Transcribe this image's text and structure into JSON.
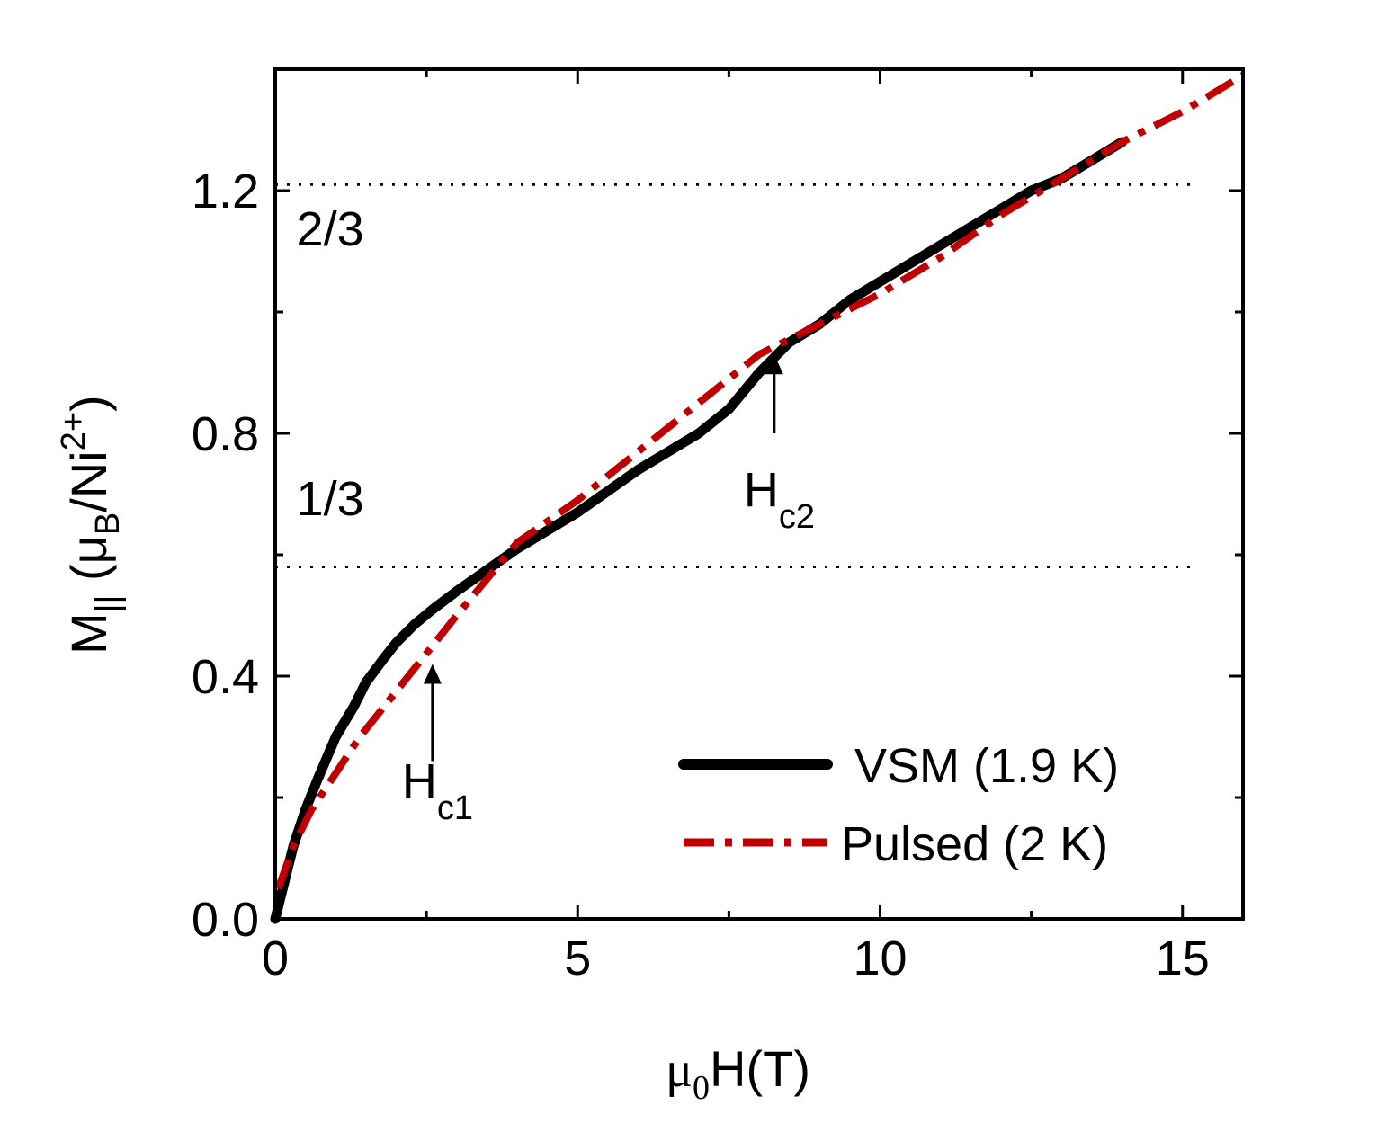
{
  "chart_data": {
    "type": "line",
    "xlabel": {
      "mu": "μ",
      "sub": "0",
      "rest": "H(T)"
    },
    "ylabel": {
      "main": "M",
      "sub": "||",
      "open": " (μ",
      "sub2": "B",
      "ni": "/Ni",
      "sup": "2+",
      "close": ")"
    },
    "xlim": [
      0,
      16
    ],
    "ylim": [
      0,
      1.4
    ],
    "x_ticks": [
      {
        "value": 0,
        "label": "0"
      },
      {
        "value": 5,
        "label": "5"
      },
      {
        "value": 10,
        "label": "10"
      },
      {
        "value": 15,
        "label": "15"
      }
    ],
    "y_ticks": [
      {
        "value": 0.0,
        "label": "0.0"
      },
      {
        "value": 0.4,
        "label": "0.4"
      },
      {
        "value": 0.8,
        "label": "0.8"
      },
      {
        "value": 1.2,
        "label": "1.2"
      }
    ],
    "reference_lines": [
      {
        "y": 1.21,
        "x_end": 15.2,
        "label": "2/3",
        "label_x": 0.35,
        "label_y": 1.11
      },
      {
        "y": 0.58,
        "x_end": 15.2,
        "label": "1/3",
        "label_x": 0.35,
        "label_y": 0.665
      }
    ],
    "annotations": [
      {
        "name": "hc1",
        "label": "H",
        "sub": "c1",
        "x": 2.6,
        "y_from": 0.26,
        "y_to": 0.42,
        "text_y": 0.2
      },
      {
        "name": "hc2",
        "label": "H",
        "sub": "c2",
        "x": 8.25,
        "y_from": 0.8,
        "y_to": 0.93,
        "text_y": 0.68
      }
    ],
    "series": [
      {
        "name": "VSM (1.9 K)",
        "color": "#000000",
        "style": "solid",
        "x": [
          0.0,
          0.1,
          0.2,
          0.3,
          0.5,
          0.7,
          1.0,
          1.3,
          1.5,
          1.8,
          2.0,
          2.3,
          2.6,
          3.0,
          3.5,
          4.0,
          4.5,
          5.0,
          5.5,
          6.0,
          6.5,
          7.0,
          7.5,
          8.0,
          8.5,
          9.0,
          9.5,
          10.0,
          10.5,
          11.0,
          11.5,
          12.0,
          12.5,
          13.0,
          13.5,
          14.0
        ],
        "y": [
          0.0,
          0.04,
          0.08,
          0.12,
          0.18,
          0.23,
          0.3,
          0.35,
          0.39,
          0.43,
          0.455,
          0.485,
          0.51,
          0.54,
          0.575,
          0.61,
          0.64,
          0.67,
          0.705,
          0.74,
          0.77,
          0.8,
          0.84,
          0.9,
          0.95,
          0.98,
          1.02,
          1.05,
          1.08,
          1.11,
          1.14,
          1.17,
          1.2,
          1.22,
          1.25,
          1.28
        ]
      },
      {
        "name": "Pulsed (2 K)",
        "color": "#c00000",
        "style": "dash-dot",
        "x": [
          0.05,
          0.3,
          0.6,
          1.0,
          1.4,
          1.8,
          2.2,
          2.6,
          3.0,
          3.5,
          4.0,
          5.0,
          6.0,
          7.0,
          8.0,
          9.0,
          10.0,
          11.0,
          12.0,
          13.0,
          14.0,
          15.0,
          16.0
        ],
        "y": [
          0.05,
          0.12,
          0.18,
          0.24,
          0.3,
          0.35,
          0.4,
          0.45,
          0.5,
          0.56,
          0.62,
          0.69,
          0.77,
          0.85,
          0.93,
          0.98,
          1.03,
          1.09,
          1.16,
          1.22,
          1.28,
          1.33,
          1.39
        ]
      }
    ]
  }
}
